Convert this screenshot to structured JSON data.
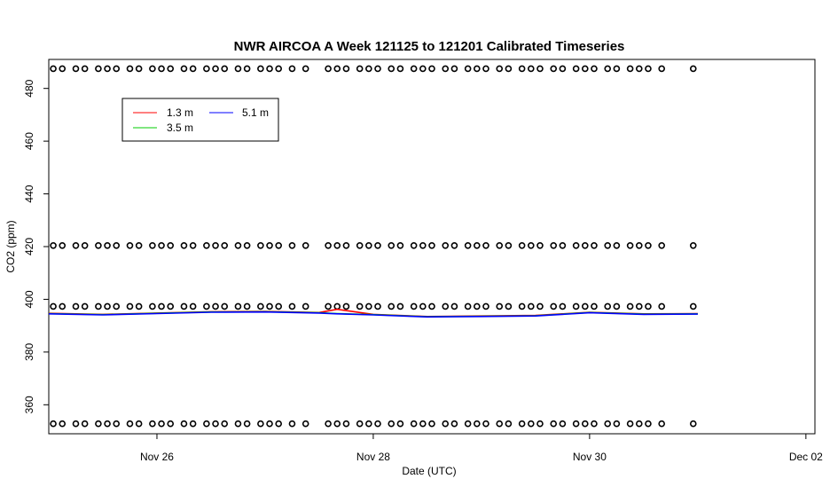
{
  "chart_data": {
    "type": "line",
    "title": "NWR AIRCOA A  Week 121125 to 121201  Calibrated Timeseries",
    "xlabel": "Date (UTC)",
    "ylabel": "CO2 (ppm)",
    "xlim": [
      "2012-11-25T00:00",
      "2012-12-02T02:00"
    ],
    "ylim": [
      349,
      491
    ],
    "x_ticks": [
      {
        "x": "2012-11-26T00:00",
        "label": "Nov 26"
      },
      {
        "x": "2012-11-28T00:00",
        "label": "Nov 28"
      },
      {
        "x": "2012-11-30T00:00",
        "label": "Nov 30"
      },
      {
        "x": "2012-12-02T00:00",
        "label": "Dec 02"
      }
    ],
    "y_ticks": [
      360,
      380,
      400,
      420,
      440,
      460,
      480
    ],
    "grid": false,
    "legend": {
      "placement": "top-left",
      "entries": [
        {
          "label": "1.3 m",
          "color": "#ff0000"
        },
        {
          "label": "3.5 m",
          "color": "#00cd00"
        },
        {
          "label": "5.1 m",
          "color": "#0000ff"
        }
      ]
    },
    "series": [
      {
        "name": "1.3 m",
        "color": "#ff0000",
        "x": [
          "2012-11-25T00:00",
          "2012-11-25T12:00",
          "2012-11-26T00:00",
          "2012-11-26T12:00",
          "2012-11-27T00:00",
          "2012-11-27T12:00",
          "2012-11-27T16:00",
          "2012-11-28T00:00",
          "2012-11-28T12:00",
          "2012-11-29T00:00",
          "2012-11-29T12:00",
          "2012-11-30T00:00",
          "2012-11-30T12:00",
          "2012-12-01T00:00"
        ],
        "values": [
          394.7,
          394.3,
          394.8,
          395.3,
          395.4,
          395.0,
          396.2,
          394.3,
          393.5,
          393.7,
          393.9,
          395.1,
          394.5,
          394.6
        ]
      },
      {
        "name": "3.5 m",
        "color": "#00cd00",
        "x": [
          "2012-11-25T00:00",
          "2012-11-25T12:00",
          "2012-11-26T00:00",
          "2012-11-26T12:00",
          "2012-11-27T00:00",
          "2012-11-27T12:00",
          "2012-11-27T16:00",
          "2012-11-28T00:00",
          "2012-11-28T12:00",
          "2012-11-29T00:00",
          "2012-11-29T12:00",
          "2012-11-30T00:00",
          "2012-11-30T12:00",
          "2012-12-01T00:00"
        ],
        "values": [
          394.6,
          394.2,
          394.7,
          395.2,
          395.3,
          394.9,
          394.6,
          394.2,
          393.4,
          393.6,
          393.8,
          395.0,
          394.4,
          394.5
        ]
      },
      {
        "name": "5.1 m",
        "color": "#0000ff",
        "x": [
          "2012-11-25T00:00",
          "2012-11-25T12:00",
          "2012-11-26T00:00",
          "2012-11-26T12:00",
          "2012-11-27T00:00",
          "2012-11-27T12:00",
          "2012-11-27T16:00",
          "2012-11-28T00:00",
          "2012-11-28T12:00",
          "2012-11-29T00:00",
          "2012-11-29T12:00",
          "2012-11-30T00:00",
          "2012-11-30T12:00",
          "2012-12-01T00:00"
        ],
        "values": [
          394.5,
          394.1,
          394.6,
          395.1,
          395.2,
          394.8,
          394.5,
          394.1,
          393.3,
          393.5,
          393.7,
          394.9,
          394.3,
          394.4
        ]
      }
    ],
    "reference_points": {
      "levels": [
        352.8,
        397.3,
        420.4,
        487.5
      ],
      "x": [
        "2012-11-25T01:00",
        "2012-11-25T03:00",
        "2012-11-25T06:00",
        "2012-11-25T08:00",
        "2012-11-25T11:00",
        "2012-11-25T13:00",
        "2012-11-25T15:00",
        "2012-11-25T18:00",
        "2012-11-25T20:00",
        "2012-11-25T23:00",
        "2012-11-26T01:00",
        "2012-11-26T03:00",
        "2012-11-26T06:00",
        "2012-11-26T08:00",
        "2012-11-26T11:00",
        "2012-11-26T13:00",
        "2012-11-26T15:00",
        "2012-11-26T18:00",
        "2012-11-26T20:00",
        "2012-11-26T23:00",
        "2012-11-27T01:00",
        "2012-11-27T03:00",
        "2012-11-27T06:00",
        "2012-11-27T09:00",
        "2012-11-27T14:00",
        "2012-11-27T16:00",
        "2012-11-27T18:00",
        "2012-11-27T21:00",
        "2012-11-27T23:00",
        "2012-11-28T01:00",
        "2012-11-28T04:00",
        "2012-11-28T06:00",
        "2012-11-28T09:00",
        "2012-11-28T11:00",
        "2012-11-28T13:00",
        "2012-11-28T16:00",
        "2012-11-28T18:00",
        "2012-11-28T21:00",
        "2012-11-28T23:00",
        "2012-11-29T01:00",
        "2012-11-29T04:00",
        "2012-11-29T06:00",
        "2012-11-29T09:00",
        "2012-11-29T11:00",
        "2012-11-29T13:00",
        "2012-11-29T16:00",
        "2012-11-29T18:00",
        "2012-11-29T21:00",
        "2012-11-29T23:00",
        "2012-11-30T01:00",
        "2012-11-30T04:00",
        "2012-11-30T06:00",
        "2012-11-30T09:00",
        "2012-11-30T11:00",
        "2012-11-30T13:00",
        "2012-11-30T16:00",
        "2012-11-30T23:00"
      ]
    }
  }
}
